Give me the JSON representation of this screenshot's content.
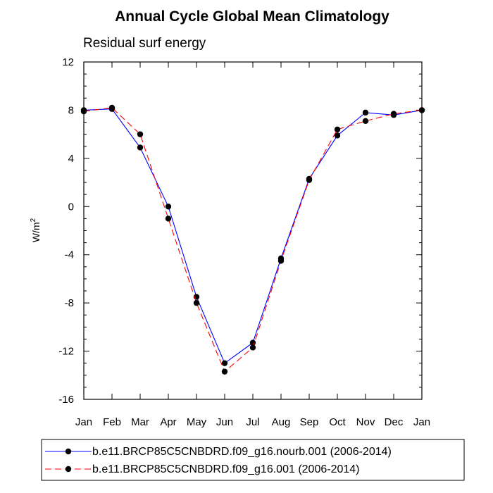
{
  "chart_data": {
    "type": "line",
    "title": "Annual Cycle Global Mean Climatology",
    "subtitle": "Residual surf energy",
    "ylabel": "W/m",
    "ylabel_superscript": "2",
    "xlabel": "",
    "categories": [
      "Jan",
      "Feb",
      "Mar",
      "Apr",
      "May",
      "Jun",
      "Jul",
      "Aug",
      "Sep",
      "Oct",
      "Nov",
      "Dec",
      "Jan"
    ],
    "ylim": [
      -16,
      12
    ],
    "yticks": [
      -16,
      -12,
      -8,
      -4,
      0,
      4,
      8,
      12
    ],
    "ytick_labels": [
      "-16",
      "-12",
      "-8",
      "-4",
      "0",
      "4",
      "8",
      "12"
    ],
    "series": [
      {
        "name": "b.e11.BRCP85C5CNBDRD.f09_g16.nourb.001 (2006-2014)",
        "color": "#0000ff",
        "dash": "solid",
        "values": [
          8.0,
          8.1,
          4.9,
          0.0,
          -7.5,
          -13.0,
          -11.3,
          -4.3,
          2.3,
          5.9,
          7.8,
          7.6,
          8.0
        ]
      },
      {
        "name": "b.e11.BRCP85C5CNBDRD.f09_g16.001 (2006-2014)",
        "color": "#ff0000",
        "dash": "dashed",
        "values": [
          7.9,
          8.2,
          6.0,
          -1.0,
          -8.0,
          -13.7,
          -11.7,
          -4.5,
          2.2,
          6.4,
          7.1,
          7.7,
          8.0
        ]
      }
    ],
    "legend_position": "bottom"
  }
}
